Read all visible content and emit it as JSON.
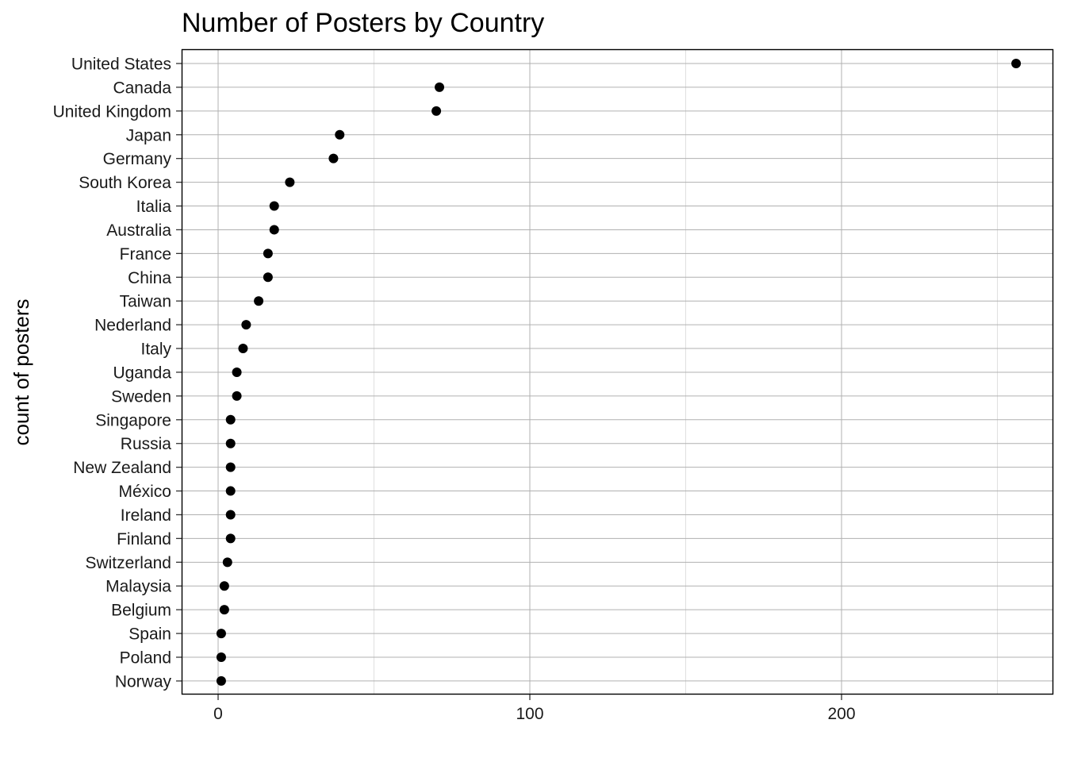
{
  "chart_data": {
    "type": "scatter",
    "title": "Number of Posters by Country",
    "xlabel": "",
    "ylabel": "count of posters",
    "xlim": [
      -11,
      269
    ],
    "xticks": [
      0,
      100,
      200
    ],
    "grid": true,
    "categories": [
      "United States",
      "Canada",
      "United Kingdom",
      "Japan",
      "Germany",
      "South Korea",
      "Italia",
      "Australia",
      "France",
      "China",
      "Taiwan",
      "Nederland",
      "Italy",
      "Uganda",
      "Sweden",
      "Singapore",
      "Russia",
      "New Zealand",
      "México",
      "Ireland",
      "Finland",
      "Switzerland",
      "Malaysia",
      "Belgium",
      "Spain",
      "Poland",
      "Norway"
    ],
    "values": [
      256,
      71,
      70,
      39,
      37,
      23,
      18,
      18,
      16,
      16,
      13,
      9,
      8,
      6,
      6,
      4,
      4,
      4,
      4,
      4,
      4,
      3,
      2,
      2,
      1,
      1,
      1
    ],
    "point_color": "#000000"
  }
}
